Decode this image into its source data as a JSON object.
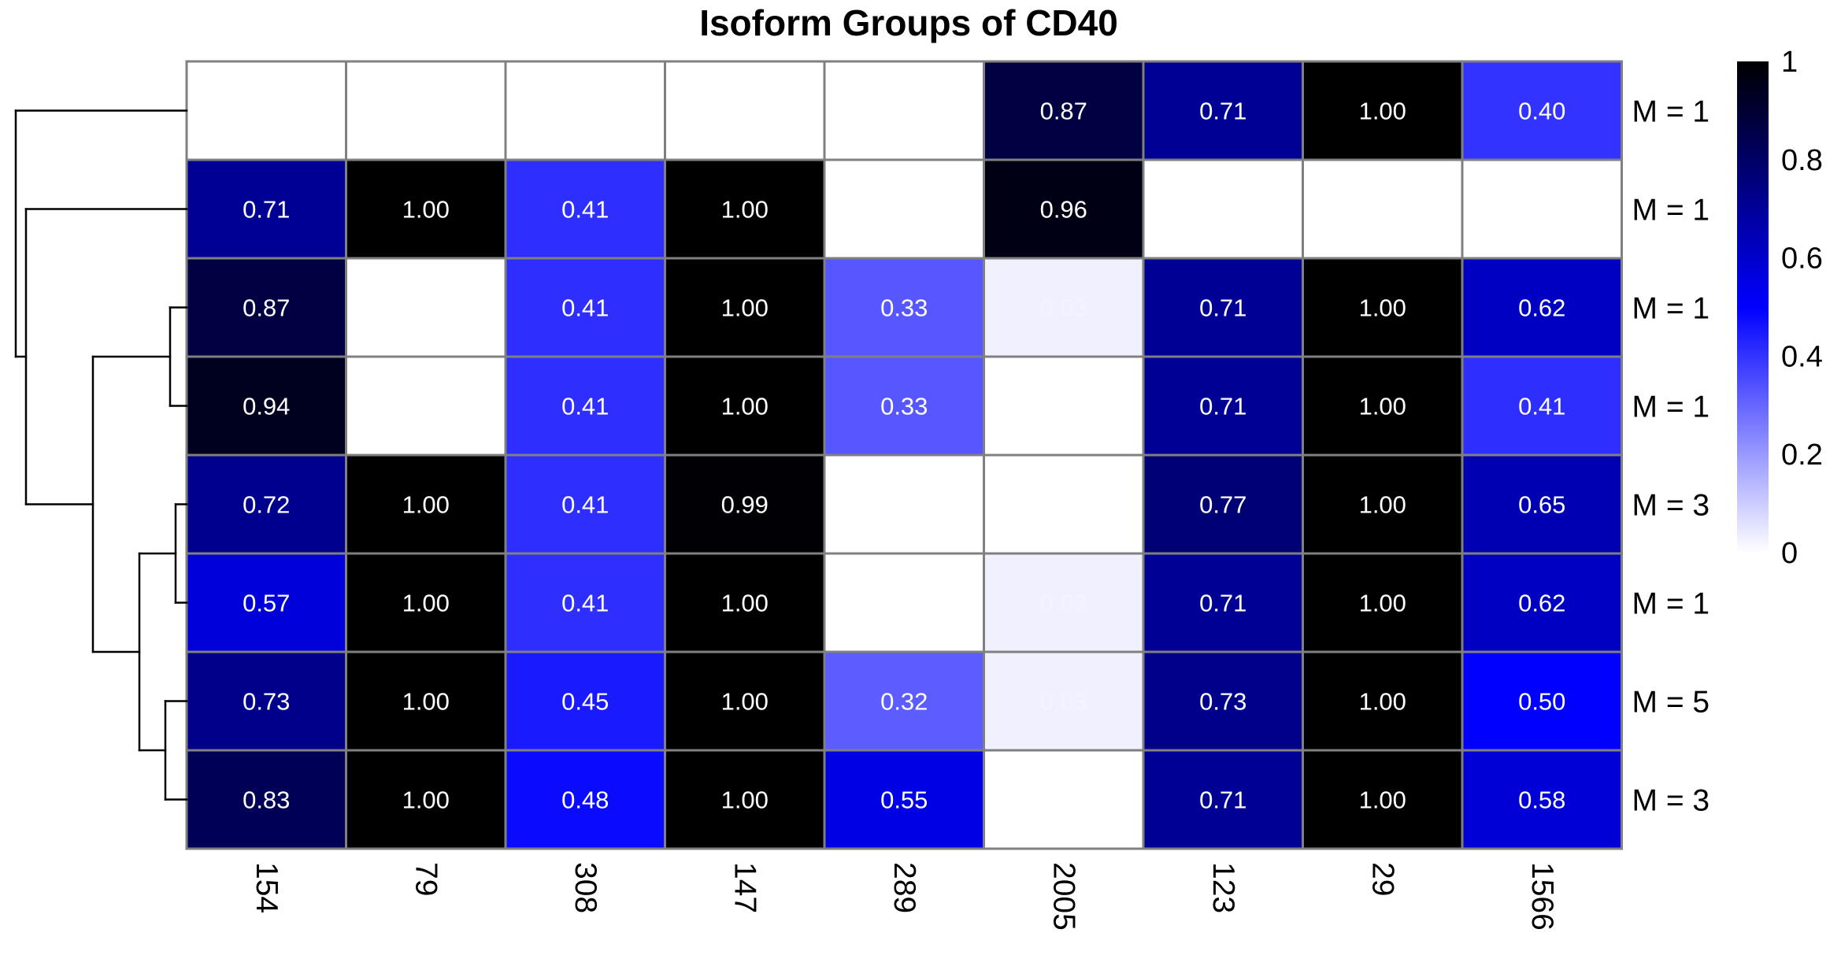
{
  "chart_data": {
    "type": "heatmap",
    "title": "Isoform Groups of CD40",
    "columns": [
      "154",
      "79",
      "308",
      "147",
      "289",
      "2005",
      "123",
      "29",
      "1566"
    ],
    "row_labels": [
      "M = 1",
      "M = 1",
      "M = 1",
      "M = 1",
      "M = 3",
      "M = 1",
      "M = 5",
      "M = 3"
    ],
    "values": [
      [
        null,
        null,
        null,
        null,
        null,
        0.87,
        0.71,
        1.0,
        0.4
      ],
      [
        0.71,
        1.0,
        0.41,
        1.0,
        null,
        0.96,
        null,
        null,
        null
      ],
      [
        0.87,
        null,
        0.41,
        1.0,
        0.33,
        0.03,
        0.71,
        1.0,
        0.62
      ],
      [
        0.94,
        null,
        0.41,
        1.0,
        0.33,
        null,
        0.71,
        1.0,
        0.41
      ],
      [
        0.72,
        1.0,
        0.41,
        0.99,
        null,
        null,
        0.77,
        1.0,
        0.65
      ],
      [
        0.57,
        1.0,
        0.41,
        1.0,
        null,
        0.03,
        0.71,
        1.0,
        0.62
      ],
      [
        0.73,
        1.0,
        0.45,
        1.0,
        0.32,
        0.03,
        0.73,
        1.0,
        0.5
      ],
      [
        0.83,
        1.0,
        0.48,
        1.0,
        0.55,
        null,
        0.71,
        1.0,
        0.58
      ]
    ],
    "value_format": "0.00",
    "color_scale": {
      "min": 0,
      "max": 1,
      "stops": [
        {
          "value": 0,
          "color": "#ffffff"
        },
        {
          "value": 0.5,
          "color": "#0000ff"
        },
        {
          "value": 1,
          "color": "#000000"
        }
      ],
      "ticks": [
        0,
        0.2,
        0.4,
        0.6,
        0.8,
        1
      ],
      "tick_labels": [
        "0",
        "0.2",
        "0.4",
        "0.6",
        "0.8",
        "1"
      ]
    },
    "missing_color": "#ffffff",
    "grid_color": "#808080",
    "row_dendrogram": true,
    "legend_position": "right"
  }
}
